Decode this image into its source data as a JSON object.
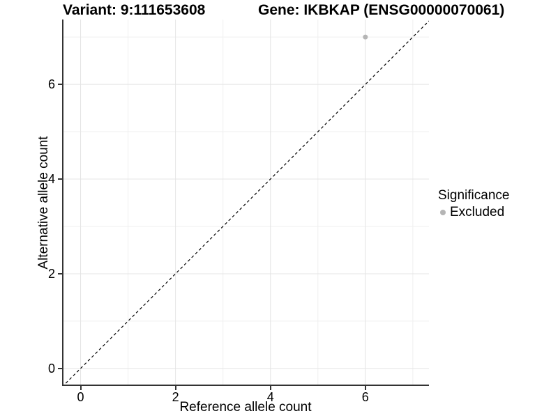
{
  "chart_data": {
    "type": "scatter",
    "title_left": "Variant: 9:111653608",
    "title_right": "Gene: IKBKAP (ENSG00000070061)",
    "xlabel": "Reference allele count",
    "ylabel": "Alternative allele count",
    "xlim": [
      -0.39,
      7.34
    ],
    "ylim": [
      -0.37,
      7.37
    ],
    "xticks": [
      0,
      2,
      4,
      6
    ],
    "yticks": [
      0,
      2,
      4,
      6
    ],
    "minor_xticks": [
      1,
      3,
      5,
      7
    ],
    "minor_yticks": [
      1,
      3,
      5,
      7
    ],
    "grid": "major-and-minor",
    "reference_line": {
      "type": "identity",
      "slope": 1,
      "intercept": 0,
      "style": "dashed"
    },
    "points": [
      {
        "x": 6,
        "y": 7,
        "significance": "Excluded"
      }
    ],
    "legend": {
      "title": "Significance",
      "position": "right",
      "entries": [
        {
          "label": "Excluded",
          "color": "#b5b5b5",
          "marker": "circle"
        }
      ]
    }
  },
  "colors": {
    "background": "#ffffff",
    "text": "#000000",
    "grid_major": "#e4e4e4",
    "grid_minor": "#efefef",
    "axis_line": "#333333",
    "tick_mark": "#333333",
    "reference_line": "#000000",
    "point": "#b5b5b5"
  }
}
